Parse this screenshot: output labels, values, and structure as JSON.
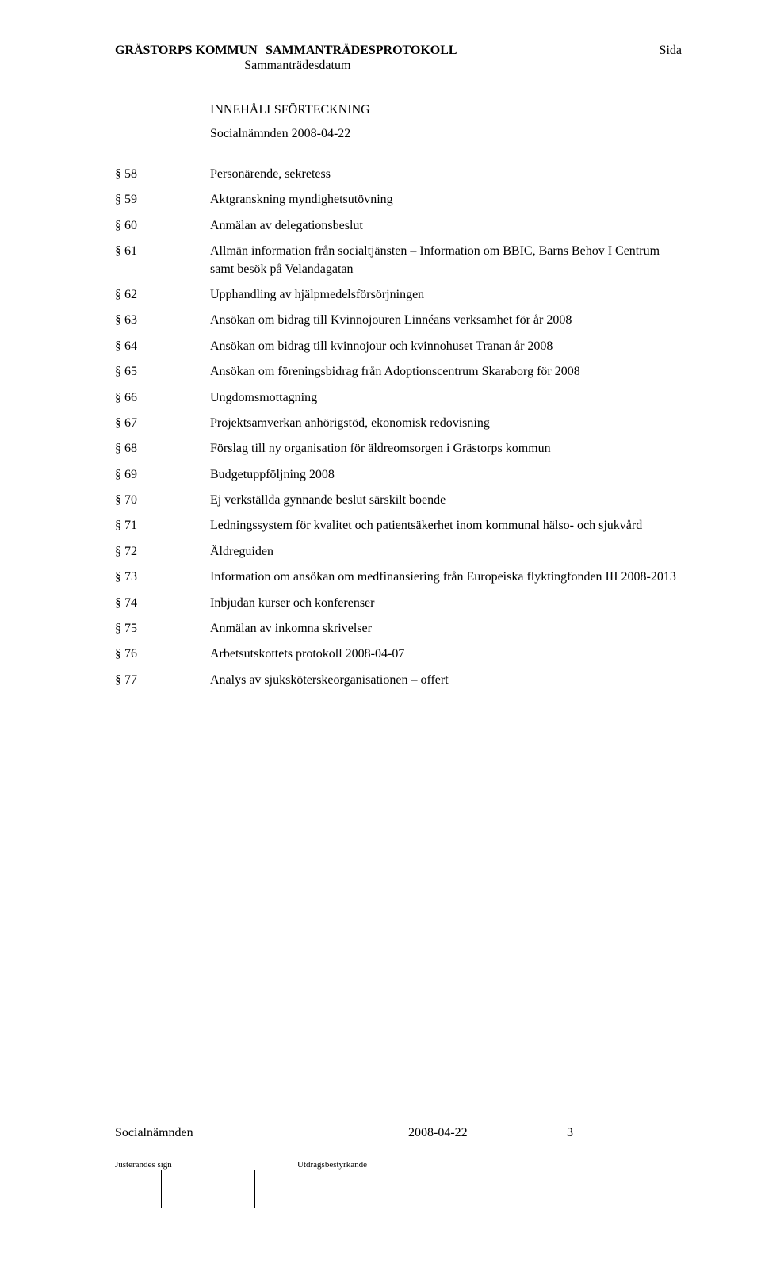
{
  "header": {
    "left": "GRÄSTORPS KOMMUN",
    "center": "SAMMANTRÄDESPROTOKOLL",
    "right": "Sida",
    "sub": "Sammanträdesdatum"
  },
  "toc": {
    "heading": "INNEHÅLLSFÖRTECKNING",
    "subheading": "Socialnämnden 2008-04-22",
    "items": [
      {
        "section": "§ 58",
        "title": "Personärende, sekretess"
      },
      {
        "section": "§ 59",
        "title": "Aktgranskning myndighetsutövning"
      },
      {
        "section": "§ 60",
        "title": "Anmälan av delegationsbeslut"
      },
      {
        "section": "§ 61",
        "title": "Allmän information från socialtjänsten – Information om BBIC, Barns Behov I Centrum samt besök på Velandagatan"
      },
      {
        "section": "§ 62",
        "title": "Upphandling av hjälpmedelsförsörjningen"
      },
      {
        "section": "§ 63",
        "title": "Ansökan om bidrag till Kvinnojouren Linnéans verksamhet för år 2008"
      },
      {
        "section": "§ 64",
        "title": "Ansökan om bidrag till kvinnojour och kvinnohuset Tranan år 2008"
      },
      {
        "section": "§ 65",
        "title": "Ansökan om föreningsbidrag från Adoptionscentrum Skaraborg för 2008"
      },
      {
        "section": "§ 66",
        "title": "Ungdomsmottagning"
      },
      {
        "section": "§ 67",
        "title": "Projektsamverkan anhörigstöd, ekonomisk redovisning"
      },
      {
        "section": "§ 68",
        "title": "Förslag till ny organisation för äldreomsorgen i Grästorps kommun"
      },
      {
        "section": "§ 69",
        "title": "Budgetuppföljning 2008"
      },
      {
        "section": "§ 70",
        "title": "Ej verkställda gynnande beslut särskilt boende"
      },
      {
        "section": "§ 71",
        "title": "Ledningssystem för kvalitet och patientsäkerhet inom kommunal hälso- och sjukvård"
      },
      {
        "section": "§ 72",
        "title": "Äldreguiden"
      },
      {
        "section": "§ 73",
        "title": "Information om ansökan om medfinansiering från Europeiska flyktingfonden III 2008-2013"
      },
      {
        "section": "§ 74",
        "title": "Inbjudan kurser och konferenser"
      },
      {
        "section": "§ 75",
        "title": "Anmälan av inkomna skrivelser"
      },
      {
        "section": "§ 76",
        "title": "Arbetsutskottets protokoll 2008-04-07"
      },
      {
        "section": "§ 77",
        "title": "Analys av sjuksköterskeorganisationen – offert"
      }
    ]
  },
  "footer": {
    "meeting_name": "Socialnämnden",
    "meeting_date": "2008-04-22",
    "page_number": "3",
    "label_left": "Justerandes sign",
    "label_right": "Utdragsbestyrkande"
  },
  "colors": {
    "text": "#000000",
    "background": "#ffffff",
    "line": "#000000"
  }
}
